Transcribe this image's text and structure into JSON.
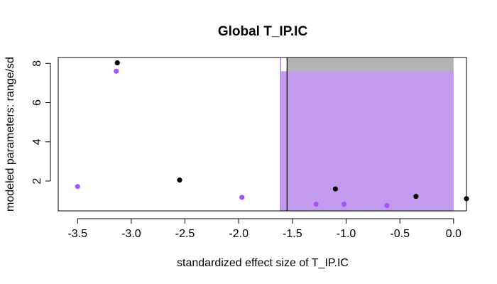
{
  "chart_data": {
    "type": "scatter",
    "title": "Global T_IP.IC",
    "xlabel": "standardized effect size of T_IP.IC",
    "ylabel": "modeled parameters: range/sd",
    "xlim": [
      -3.68,
      0.12
    ],
    "ylim": [
      0.48,
      8.3
    ],
    "x_ticks": [
      -3.5,
      -3.0,
      -2.5,
      -2.0,
      -1.5,
      -1.0,
      -0.5,
      0.0
    ],
    "x_tick_labels": [
      "-3.5",
      "-3.0",
      "-2.5",
      "-2.0",
      "-1.5",
      "-1.0",
      "-0.5",
      "0.0"
    ],
    "y_ticks": [
      2,
      4,
      6,
      8
    ],
    "y_tick_labels": [
      "2",
      "4",
      "6",
      "8"
    ],
    "grid": false,
    "regions": [
      {
        "name": "range",
        "color": "#b3b3b3",
        "x": [
          -1.55,
          0.0
        ],
        "y": [
          0.48,
          8.3
        ]
      },
      {
        "name": "sd",
        "color": "#c39bee",
        "x": [
          -1.61,
          0.0
        ],
        "y": [
          0.48,
          7.6
        ]
      }
    ],
    "vlines": [
      {
        "x": -1.55,
        "color": "#000000"
      },
      {
        "x": -1.61,
        "color": "#a855f7"
      }
    ],
    "series": [
      {
        "color": "#000000",
        "points": [
          {
            "x": -3.13,
            "y": 8.03
          },
          {
            "x": -2.55,
            "y": 2.05
          },
          {
            "x": -1.1,
            "y": 1.6
          },
          {
            "x": -0.35,
            "y": 1.22
          },
          {
            "x": 0.12,
            "y": 1.1
          }
        ]
      },
      {
        "color": "#a855f7",
        "points": [
          {
            "x": -3.5,
            "y": 1.72
          },
          {
            "x": -3.14,
            "y": 7.6
          },
          {
            "x": -1.97,
            "y": 1.17
          },
          {
            "x": -1.28,
            "y": 0.82
          },
          {
            "x": -1.02,
            "y": 0.82
          },
          {
            "x": -0.62,
            "y": 0.75
          }
        ]
      }
    ]
  }
}
